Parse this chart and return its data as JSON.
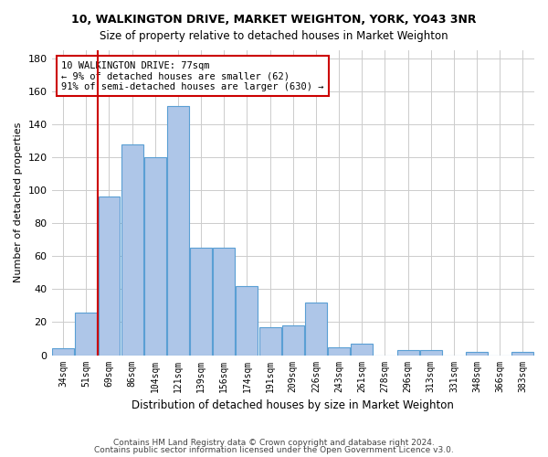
{
  "title1": "10, WALKINGTON DRIVE, MARKET WEIGHTON, YORK, YO43 3NR",
  "title2": "Size of property relative to detached houses in Market Weighton",
  "xlabel": "Distribution of detached houses by size in Market Weighton",
  "ylabel": "Number of detached properties",
  "categories": [
    "34sqm",
    "51sqm",
    "69sqm",
    "86sqm",
    "104sqm",
    "121sqm",
    "139sqm",
    "156sqm",
    "174sqm",
    "191sqm",
    "209sqm",
    "226sqm",
    "243sqm",
    "261sqm",
    "278sqm",
    "296sqm",
    "313sqm",
    "331sqm",
    "348sqm",
    "366sqm",
    "383sqm"
  ],
  "values": [
    4,
    26,
    96,
    128,
    120,
    151,
    65,
    65,
    42,
    17,
    18,
    32,
    5,
    7,
    0,
    3,
    3,
    0,
    2,
    0,
    2
  ],
  "bar_color": "#aec6e8",
  "bar_edge_color": "#5a9fd4",
  "vline_x": 1.5,
  "vline_color": "#cc0000",
  "annotation_text": "10 WALKINGTON DRIVE: 77sqm\n← 9% of detached houses are smaller (62)\n91% of semi-detached houses are larger (630) →",
  "annotation_box_color": "#ffffff",
  "annotation_box_edge": "#cc0000",
  "ylim": [
    0,
    185
  ],
  "yticks": [
    0,
    20,
    40,
    60,
    80,
    100,
    120,
    140,
    160,
    180
  ],
  "footer1": "Contains HM Land Registry data © Crown copyright and database right 2024.",
  "footer2": "Contains public sector information licensed under the Open Government Licence v3.0.",
  "background_color": "#ffffff",
  "grid_color": "#cccccc"
}
